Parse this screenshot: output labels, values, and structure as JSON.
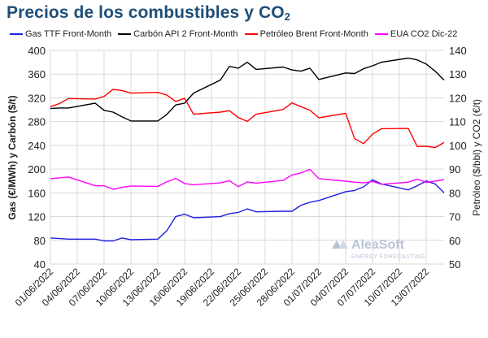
{
  "header": {
    "title_main": "Precios de los combustibles y CO",
    "title_sub": "2"
  },
  "watermark": {
    "brand": "AleaSoft",
    "tagline": "ENERGY FORECASTING"
  },
  "colors": {
    "gas": "#1f1fe0",
    "coal": "#000000",
    "brent": "#ff0000",
    "co2": "#ff00ff",
    "grid": "#d9d9d9",
    "title": "#1f4e79",
    "watermark": "#b8c4d6"
  },
  "chart_data": {
    "type": "line",
    "title": "Precios de los combustibles y CO2",
    "legend_position": "top",
    "grid": true,
    "x_ticks": [
      "01/06/2022",
      "04/06/2022",
      "07/06/2022",
      "10/06/2022",
      "13/06/2022",
      "16/06/2022",
      "19/06/2022",
      "22/06/2022",
      "25/06/2022",
      "28/06/2022",
      "01/07/2022",
      "04/07/2022",
      "07/07/2022",
      "10/07/2022",
      "13/07/2022"
    ],
    "x_range": [
      "01/06/2022",
      "15/07/2022"
    ],
    "y_left": {
      "label": "Gas (€/MWh) y Carbón ($/t)",
      "range": [
        40,
        400
      ],
      "ticks": [
        40,
        80,
        120,
        160,
        200,
        240,
        280,
        320,
        360,
        400
      ]
    },
    "y_right": {
      "label": "Petróleo ($/bbl) y CO2 (€/t)",
      "range": [
        50,
        140
      ],
      "ticks": [
        50,
        60,
        70,
        80,
        90,
        100,
        110,
        120,
        130,
        140
      ]
    },
    "series": [
      {
        "name": "Gas TTF Front-Month",
        "axis": "left",
        "color": "#1f1fe0",
        "points": [
          [
            "01/06/2022",
            84
          ],
          [
            "02/06/2022",
            83
          ],
          [
            "03/06/2022",
            82
          ],
          [
            "06/06/2022",
            82
          ],
          [
            "07/06/2022",
            79
          ],
          [
            "08/06/2022",
            79
          ],
          [
            "09/06/2022",
            84
          ],
          [
            "10/06/2022",
            81
          ],
          [
            "13/06/2022",
            82
          ],
          [
            "14/06/2022",
            96
          ],
          [
            "15/06/2022",
            120
          ],
          [
            "16/06/2022",
            124
          ],
          [
            "17/06/2022",
            118
          ],
          [
            "20/06/2022",
            120
          ],
          [
            "21/06/2022",
            125
          ],
          [
            "22/06/2022",
            127
          ],
          [
            "23/06/2022",
            133
          ],
          [
            "24/06/2022",
            128
          ],
          [
            "27/06/2022",
            129
          ],
          [
            "28/06/2022",
            129
          ],
          [
            "29/06/2022",
            139
          ],
          [
            "30/06/2022",
            144
          ],
          [
            "01/07/2022",
            147
          ],
          [
            "04/07/2022",
            162
          ],
          [
            "05/07/2022",
            164
          ],
          [
            "06/07/2022",
            170
          ],
          [
            "07/07/2022",
            182
          ],
          [
            "08/07/2022",
            175
          ],
          [
            "11/07/2022",
            165
          ],
          [
            "12/07/2022",
            172
          ],
          [
            "13/07/2022",
            180
          ],
          [
            "14/07/2022",
            175
          ],
          [
            "15/07/2022",
            160
          ]
        ]
      },
      {
        "name": "Carbón API 2 Front-Month",
        "axis": "left",
        "color": "#000000",
        "points": [
          [
            "01/06/2022",
            302
          ],
          [
            "02/06/2022",
            303
          ],
          [
            "03/06/2022",
            303
          ],
          [
            "06/06/2022",
            311
          ],
          [
            "07/06/2022",
            299
          ],
          [
            "08/06/2022",
            296
          ],
          [
            "09/06/2022",
            288
          ],
          [
            "10/06/2022",
            281
          ],
          [
            "13/06/2022",
            281
          ],
          [
            "14/06/2022",
            292
          ],
          [
            "15/06/2022",
            308
          ],
          [
            "16/06/2022",
            311
          ],
          [
            "17/06/2022",
            328
          ],
          [
            "20/06/2022",
            350
          ],
          [
            "21/06/2022",
            373
          ],
          [
            "22/06/2022",
            370
          ],
          [
            "23/06/2022",
            380
          ],
          [
            "24/06/2022",
            368
          ],
          [
            "27/06/2022",
            372
          ],
          [
            "28/06/2022",
            367
          ],
          [
            "29/06/2022",
            365
          ],
          [
            "30/06/2022",
            370
          ],
          [
            "01/07/2022",
            351
          ],
          [
            "04/07/2022",
            362
          ],
          [
            "05/07/2022",
            361
          ],
          [
            "06/07/2022",
            369
          ],
          [
            "07/07/2022",
            374
          ],
          [
            "08/07/2022",
            380
          ],
          [
            "11/07/2022",
            387
          ],
          [
            "12/07/2022",
            384
          ],
          [
            "13/07/2022",
            377
          ],
          [
            "14/07/2022",
            365
          ],
          [
            "15/07/2022",
            350
          ]
        ]
      },
      {
        "name": "Petróleo Brent Front-Month",
        "axis": "right",
        "color": "#ff0000",
        "points": [
          [
            "01/06/2022",
            116.3
          ],
          [
            "02/06/2022",
            117.6
          ],
          [
            "03/06/2022",
            119.7
          ],
          [
            "06/06/2022",
            119.5
          ],
          [
            "07/06/2022",
            120.6
          ],
          [
            "08/06/2022",
            123.6
          ],
          [
            "09/06/2022",
            123.1
          ],
          [
            "10/06/2022",
            122.0
          ],
          [
            "13/06/2022",
            122.3
          ],
          [
            "14/06/2022",
            121.2
          ],
          [
            "15/06/2022",
            118.5
          ],
          [
            "16/06/2022",
            119.8
          ],
          [
            "17/06/2022",
            113.1
          ],
          [
            "20/06/2022",
            114.0
          ],
          [
            "21/06/2022",
            114.6
          ],
          [
            "22/06/2022",
            111.7
          ],
          [
            "23/06/2022",
            110.1
          ],
          [
            "24/06/2022",
            113.1
          ],
          [
            "27/06/2022",
            115.1
          ],
          [
            "28/06/2022",
            117.9
          ],
          [
            "29/06/2022",
            116.3
          ],
          [
            "30/06/2022",
            114.8
          ],
          [
            "01/07/2022",
            111.6
          ],
          [
            "04/07/2022",
            113.5
          ],
          [
            "05/07/2022",
            102.8
          ],
          [
            "06/07/2022",
            100.7
          ],
          [
            "07/07/2022",
            104.7
          ],
          [
            "08/07/2022",
            107.0
          ],
          [
            "11/07/2022",
            107.1
          ],
          [
            "12/07/2022",
            99.5
          ],
          [
            "13/07/2022",
            99.6
          ],
          [
            "14/07/2022",
            99.1
          ],
          [
            "15/07/2022",
            101.2
          ]
        ]
      },
      {
        "name": "EUA CO2 Dic-22",
        "axis": "right",
        "color": "#ff00ff",
        "points": [
          [
            "01/06/2022",
            86.0
          ],
          [
            "02/06/2022",
            86.3
          ],
          [
            "03/06/2022",
            86.7
          ],
          [
            "06/06/2022",
            83.0
          ],
          [
            "07/06/2022",
            83.0
          ],
          [
            "08/06/2022",
            81.5
          ],
          [
            "09/06/2022",
            82.3
          ],
          [
            "10/06/2022",
            82.9
          ],
          [
            "13/06/2022",
            82.7
          ],
          [
            "14/06/2022",
            84.6
          ],
          [
            "15/06/2022",
            86.1
          ],
          [
            "16/06/2022",
            83.9
          ],
          [
            "17/06/2022",
            83.4
          ],
          [
            "20/06/2022",
            84.2
          ],
          [
            "21/06/2022",
            85.1
          ],
          [
            "22/06/2022",
            82.6
          ],
          [
            "23/06/2022",
            84.6
          ],
          [
            "24/06/2022",
            84.1
          ],
          [
            "27/06/2022",
            85.2
          ],
          [
            "28/06/2022",
            87.5
          ],
          [
            "29/06/2022",
            88.4
          ],
          [
            "30/06/2022",
            89.9
          ],
          [
            "01/07/2022",
            86.0
          ],
          [
            "04/07/2022",
            84.9
          ],
          [
            "05/07/2022",
            84.5
          ],
          [
            "06/07/2022",
            84.2
          ],
          [
            "07/07/2022",
            84.8
          ],
          [
            "08/07/2022",
            83.6
          ],
          [
            "11/07/2022",
            84.5
          ],
          [
            "12/07/2022",
            85.8
          ],
          [
            "13/07/2022",
            84.4
          ],
          [
            "14/07/2022",
            84.9
          ],
          [
            "15/07/2022",
            85.6
          ]
        ]
      }
    ]
  }
}
